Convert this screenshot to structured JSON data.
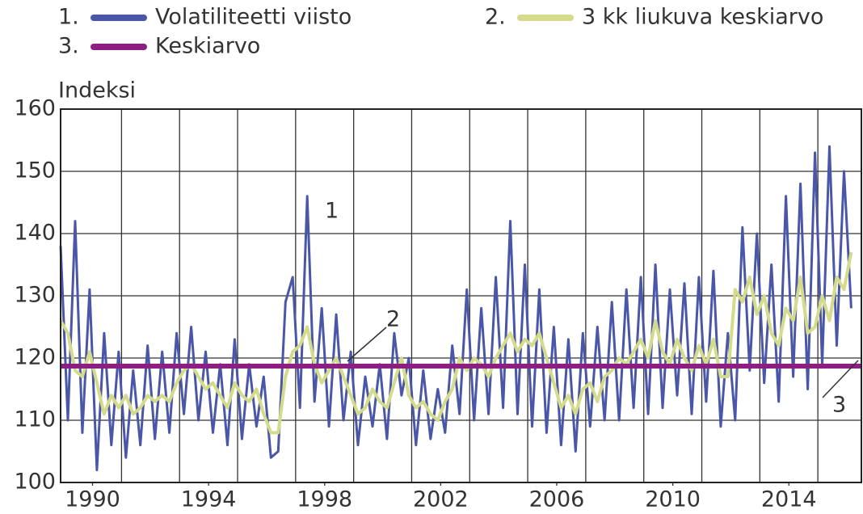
{
  "chart_data": {
    "type": "line",
    "y_label": "Indeksi",
    "xlim": [
      1988.9,
      2016.5
    ],
    "xticks": [
      1990,
      1994,
      1998,
      2002,
      2006,
      2010,
      2014
    ],
    "xgrid": [
      1991,
      1993,
      1995,
      1997,
      1999,
      2001,
      2003,
      2005,
      2007,
      2009,
      2011,
      2013,
      2015
    ],
    "ylim": [
      100,
      160
    ],
    "yticks": [
      100,
      110,
      120,
      130,
      140,
      150,
      160
    ],
    "grid": true,
    "x": [
      1988.9,
      1989.15,
      1989.4,
      1989.65,
      1989.9,
      1990.15,
      1990.4,
      1990.65,
      1990.9,
      1991.15,
      1991.4,
      1991.65,
      1991.9,
      1992.15,
      1992.4,
      1992.65,
      1992.9,
      1993.15,
      1993.4,
      1993.65,
      1993.9,
      1994.15,
      1994.4,
      1994.65,
      1994.9,
      1995.15,
      1995.4,
      1995.65,
      1995.9,
      1996.15,
      1996.4,
      1996.65,
      1996.9,
      1997.15,
      1997.4,
      1997.65,
      1997.9,
      1998.15,
      1998.4,
      1998.65,
      1998.9,
      1999.15,
      1999.4,
      1999.65,
      1999.9,
      2000.15,
      2000.4,
      2000.65,
      2000.9,
      2001.15,
      2001.4,
      2001.65,
      2001.9,
      2002.15,
      2002.4,
      2002.65,
      2002.9,
      2003.15,
      2003.4,
      2003.65,
      2003.9,
      2004.15,
      2004.4,
      2004.65,
      2004.9,
      2005.15,
      2005.4,
      2005.65,
      2005.9,
      2006.15,
      2006.4,
      2006.65,
      2006.9,
      2007.15,
      2007.4,
      2007.65,
      2007.9,
      2008.15,
      2008.4,
      2008.65,
      2008.9,
      2009.15,
      2009.4,
      2009.65,
      2009.9,
      2010.15,
      2010.4,
      2010.65,
      2010.9,
      2011.15,
      2011.4,
      2011.65,
      2011.9,
      2012.15,
      2012.4,
      2012.65,
      2012.9,
      2013.15,
      2013.4,
      2013.65,
      2013.9,
      2014.15,
      2014.4,
      2014.65,
      2014.9,
      2015.15,
      2015.4,
      2015.65,
      2015.9,
      2016.15
    ],
    "series": [
      {
        "legend_number": "1.",
        "name": "Volatiliteetti viisto",
        "color": "#4a56a8",
        "width": 3,
        "values": [
          138,
          110,
          142,
          108,
          131,
          102,
          124,
          106,
          121,
          104,
          118,
          106,
          122,
          107,
          121,
          108,
          124,
          111,
          125,
          110,
          121,
          108,
          119,
          106,
          123,
          107,
          119,
          109,
          117,
          104,
          105,
          129,
          133,
          112,
          146,
          113,
          128,
          109,
          127,
          110,
          121,
          106,
          117,
          109,
          119,
          107,
          124,
          114,
          120,
          106,
          118,
          107,
          115,
          108,
          122,
          111,
          131,
          110,
          128,
          111,
          133,
          112,
          142,
          111,
          135,
          109,
          131,
          108,
          125,
          106,
          123,
          105,
          124,
          109,
          125,
          110,
          129,
          110,
          131,
          112,
          133,
          111,
          135,
          112,
          131,
          114,
          132,
          111,
          133,
          113,
          134,
          109,
          124,
          110,
          141,
          118,
          140,
          116,
          135,
          113,
          146,
          117,
          148,
          115,
          153,
          119,
          154,
          122,
          150,
          128
        ]
      },
      {
        "legend_number": "2.",
        "name": "3 kk liukuva keskiarvo",
        "color": "#d4dc8c",
        "width": 4,
        "values": [
          126,
          124,
          118,
          117,
          121,
          116,
          111,
          114,
          112,
          114,
          111,
          112,
          114,
          113,
          114,
          113,
          116,
          118,
          119,
          117,
          115,
          116,
          114,
          112,
          116,
          114,
          113,
          115,
          111,
          108,
          108,
          117,
          121,
          122,
          125,
          119,
          116,
          118,
          120,
          117,
          114,
          111,
          112,
          115,
          113,
          112,
          116,
          120,
          114,
          112,
          113,
          111,
          110,
          113,
          115,
          120,
          118,
          120,
          119,
          117,
          120,
          122,
          124,
          121,
          123,
          122,
          124,
          120,
          116,
          112,
          114,
          111,
          115,
          116,
          113,
          117,
          118,
          120,
          119,
          121,
          123,
          120,
          126,
          121,
          119,
          123,
          120,
          118,
          122,
          119,
          123,
          117,
          117,
          131,
          129,
          133,
          127,
          130,
          124,
          122,
          128,
          126,
          133,
          124,
          125,
          130,
          126,
          133,
          131,
          137
        ]
      },
      {
        "legend_number": "3.",
        "name": "Keskiarvo",
        "color": "#8e1f82",
        "width": 6,
        "value": 118.7
      }
    ],
    "annotations": [
      "1",
      "2",
      "3"
    ]
  }
}
